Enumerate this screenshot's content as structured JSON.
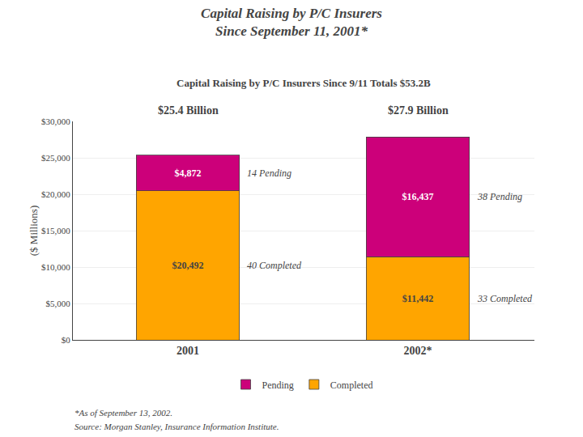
{
  "chart_data": {
    "type": "bar",
    "title": "Capital Raising by P/C Insurers\nSince September 11, 2001*",
    "subtitle": "Capital Raising by P/C Insurers Since 9/11 Totals $53.2B",
    "categories": [
      "2001",
      "2002*"
    ],
    "series": [
      {
        "name": "Completed",
        "color": "#FFA500",
        "values": [
          20492,
          11442
        ],
        "value_labels": [
          "$20,492",
          "$11,442"
        ]
      },
      {
        "name": "Pending",
        "color": "#CC007A",
        "values": [
          4872,
          16437
        ],
        "value_labels": [
          "$4,872",
          "$16,437"
        ]
      }
    ],
    "stacked": true,
    "data_labels": true,
    "ylabel": "($ Millions)",
    "ylim": [
      0,
      30000
    ],
    "yticks": [
      {
        "value": 0,
        "label": "$0"
      },
      {
        "value": 5000,
        "label": "$5,000"
      },
      {
        "value": 10000,
        "label": "$10,000"
      },
      {
        "value": 15000,
        "label": "$15,000"
      },
      {
        "value": 20000,
        "label": "$20,000"
      },
      {
        "value": 25000,
        "label": "$25,000"
      },
      {
        "value": 30000,
        "label": "$30,000"
      }
    ],
    "grid": true,
    "legend": "bottom",
    "annotations": [
      {
        "text": "40 Completed",
        "category": "2001",
        "series": "Completed"
      },
      {
        "text": "14 Pending",
        "category": "2001",
        "series": "Pending"
      },
      {
        "text": "33 Completed",
        "category": "2002*",
        "series": "Completed"
      },
      {
        "text": "38 Pending",
        "category": "2002*",
        "series": "Pending"
      },
      {
        "text": "$25.4 Billion",
        "category": "2001"
      },
      {
        "text": "$27.9 Billion",
        "category": "2002*"
      }
    ],
    "footnotes": [
      "*As of September 13, 2002.",
      "Source: Morgan Stanley, Insurance Information Institute."
    ]
  }
}
